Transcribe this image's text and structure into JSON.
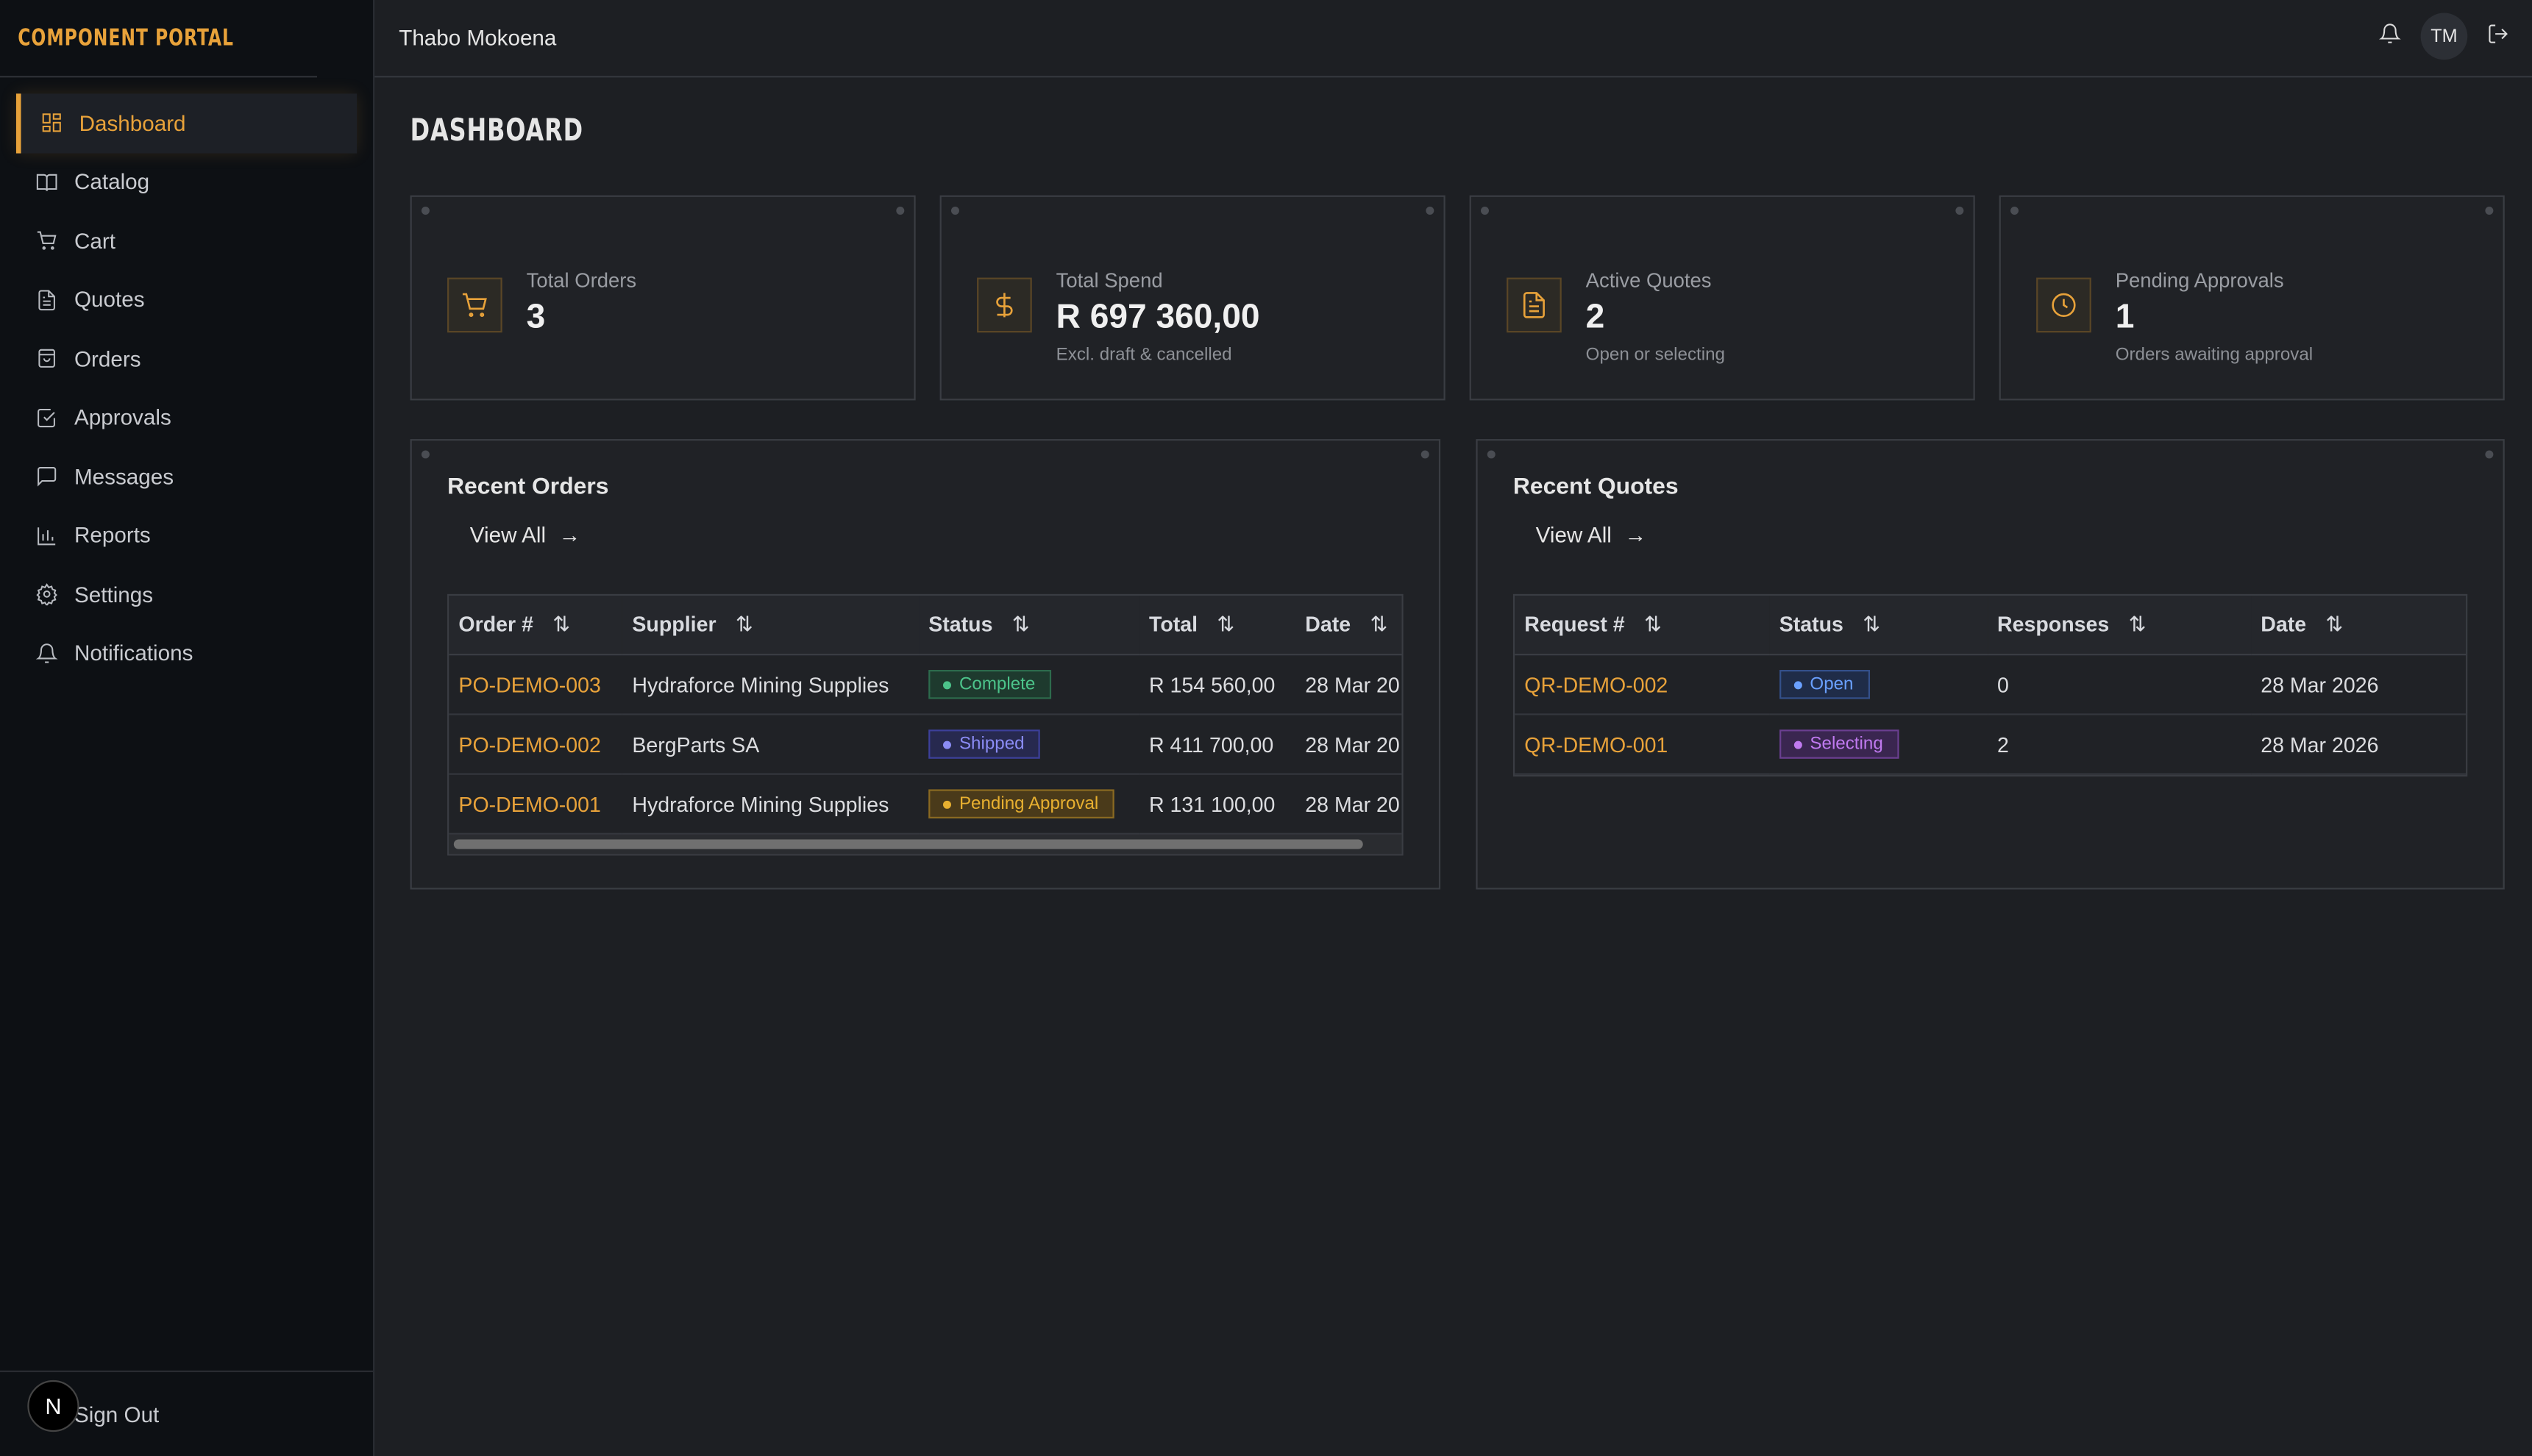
{
  "brand": "COMPONENT PORTAL",
  "user": {
    "name": "Thabo Mokoena",
    "initials": "TM"
  },
  "sidebar": {
    "items": [
      {
        "label": "Dashboard",
        "icon": "dashboard-icon",
        "active": true
      },
      {
        "label": "Catalog",
        "icon": "book-icon"
      },
      {
        "label": "Cart",
        "icon": "cart-icon"
      },
      {
        "label": "Quotes",
        "icon": "file-icon"
      },
      {
        "label": "Orders",
        "icon": "bag-icon"
      },
      {
        "label": "Approvals",
        "icon": "check-square-icon"
      },
      {
        "label": "Messages",
        "icon": "message-icon"
      },
      {
        "label": "Reports",
        "icon": "bar-chart-icon"
      },
      {
        "label": "Settings",
        "icon": "gear-icon"
      },
      {
        "label": "Notifications",
        "icon": "bell-icon"
      }
    ],
    "signout": "Sign Out",
    "dev_badge": "N"
  },
  "page_title": "DASHBOARD",
  "stats": [
    {
      "label": "Total Orders",
      "value": "3",
      "sub": ""
    },
    {
      "label": "Total Spend",
      "value": "R 697 360,00",
      "sub": "Excl. draft & cancelled"
    },
    {
      "label": "Active Quotes",
      "value": "2",
      "sub": "Open or selecting"
    },
    {
      "label": "Pending Approvals",
      "value": "1",
      "sub": "Orders awaiting approval"
    }
  ],
  "recent_orders": {
    "title": "Recent Orders",
    "view_all": "View All",
    "columns": [
      "Order #",
      "Supplier",
      "Status",
      "Total",
      "Date"
    ],
    "rows": [
      {
        "id": "PO-DEMO-003",
        "supplier": "Hydraforce Mining Supplies",
        "status": "Complete",
        "total": "R 154 560,00",
        "date": "28 Mar 20"
      },
      {
        "id": "PO-DEMO-002",
        "supplier": "BergParts SA",
        "status": "Shipped",
        "total": "R 411 700,00",
        "date": "28 Mar 20"
      },
      {
        "id": "PO-DEMO-001",
        "supplier": "Hydraforce Mining Supplies",
        "status": "Pending Approval",
        "total": "R 131 100,00",
        "date": "28 Mar 20"
      }
    ]
  },
  "recent_quotes": {
    "title": "Recent Quotes",
    "view_all": "View All",
    "columns": [
      "Request #",
      "Status",
      "Responses",
      "Date"
    ],
    "rows": [
      {
        "id": "QR-DEMO-002",
        "status": "Open",
        "responses": "0",
        "date": "28 Mar 2026"
      },
      {
        "id": "QR-DEMO-001",
        "status": "Selecting",
        "responses": "2",
        "date": "28 Mar 2026"
      }
    ]
  },
  "colors": {
    "accent": "#e8a23a",
    "complete": "#4cc38a",
    "shipped": "#8b8cf5",
    "pending": "#e8b030",
    "open": "#6aa0ff",
    "selecting": "#c07af0"
  }
}
